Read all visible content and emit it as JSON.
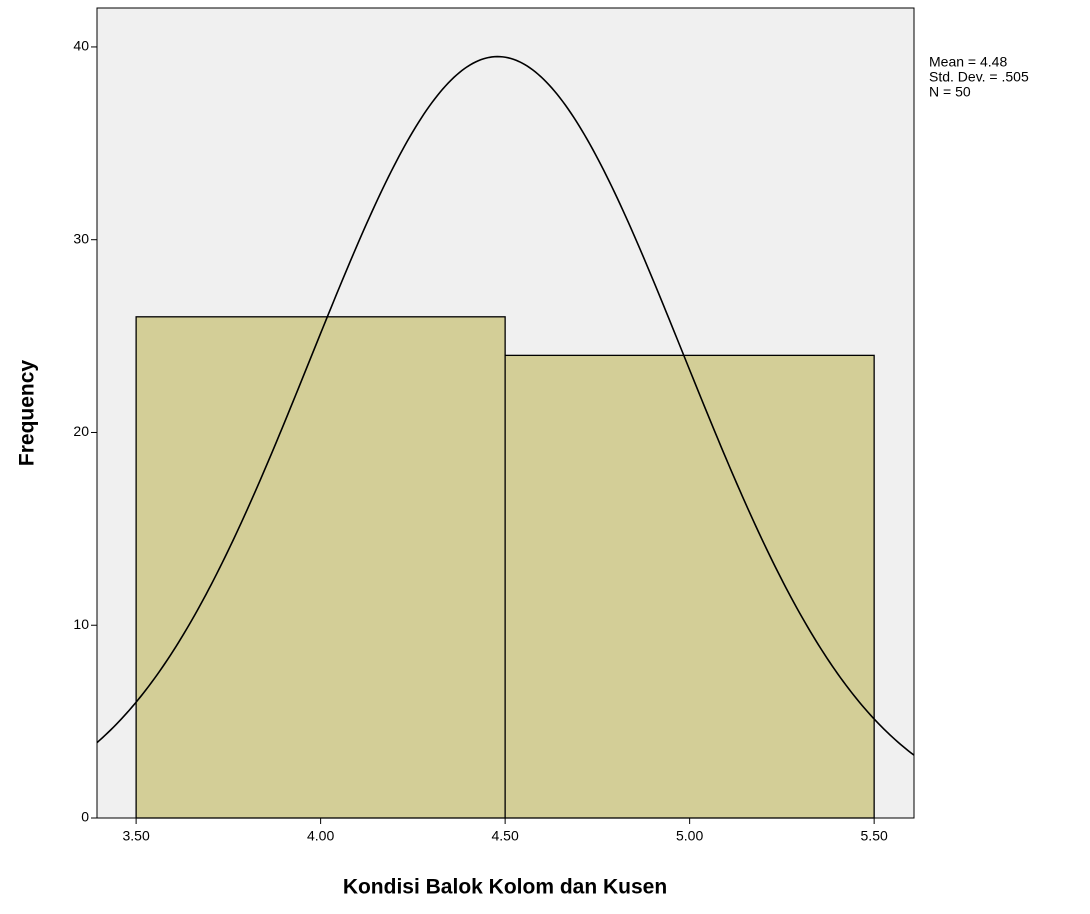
{
  "chart_data": {
    "type": "histogram",
    "x_label": "Kondisi Balok Kolom dan Kusen",
    "y_label": "Frequency",
    "bins": [
      3.5,
      4.5,
      5.5
    ],
    "values": [
      26,
      24
    ],
    "color": "#d3ce97",
    "xlim": [
      3.394,
      5.608
    ],
    "ylim": [
      0,
      42.02
    ],
    "xticks": [
      {
        "value": 3.5,
        "label": "3.50"
      },
      {
        "value": 4.0,
        "label": "4.00"
      },
      {
        "value": 4.5,
        "label": "4.50"
      },
      {
        "value": 5.0,
        "label": "5.00"
      },
      {
        "value": 5.5,
        "label": "5.50"
      }
    ],
    "yticks": [
      0,
      10,
      20,
      30,
      40
    ],
    "annotations": [
      "Mean = 4.48",
      "Std. Dev. = .505",
      "N = 50"
    ],
    "normal_curve": {
      "mean": 4.48,
      "sd": 0.505,
      "n": 50
    }
  }
}
